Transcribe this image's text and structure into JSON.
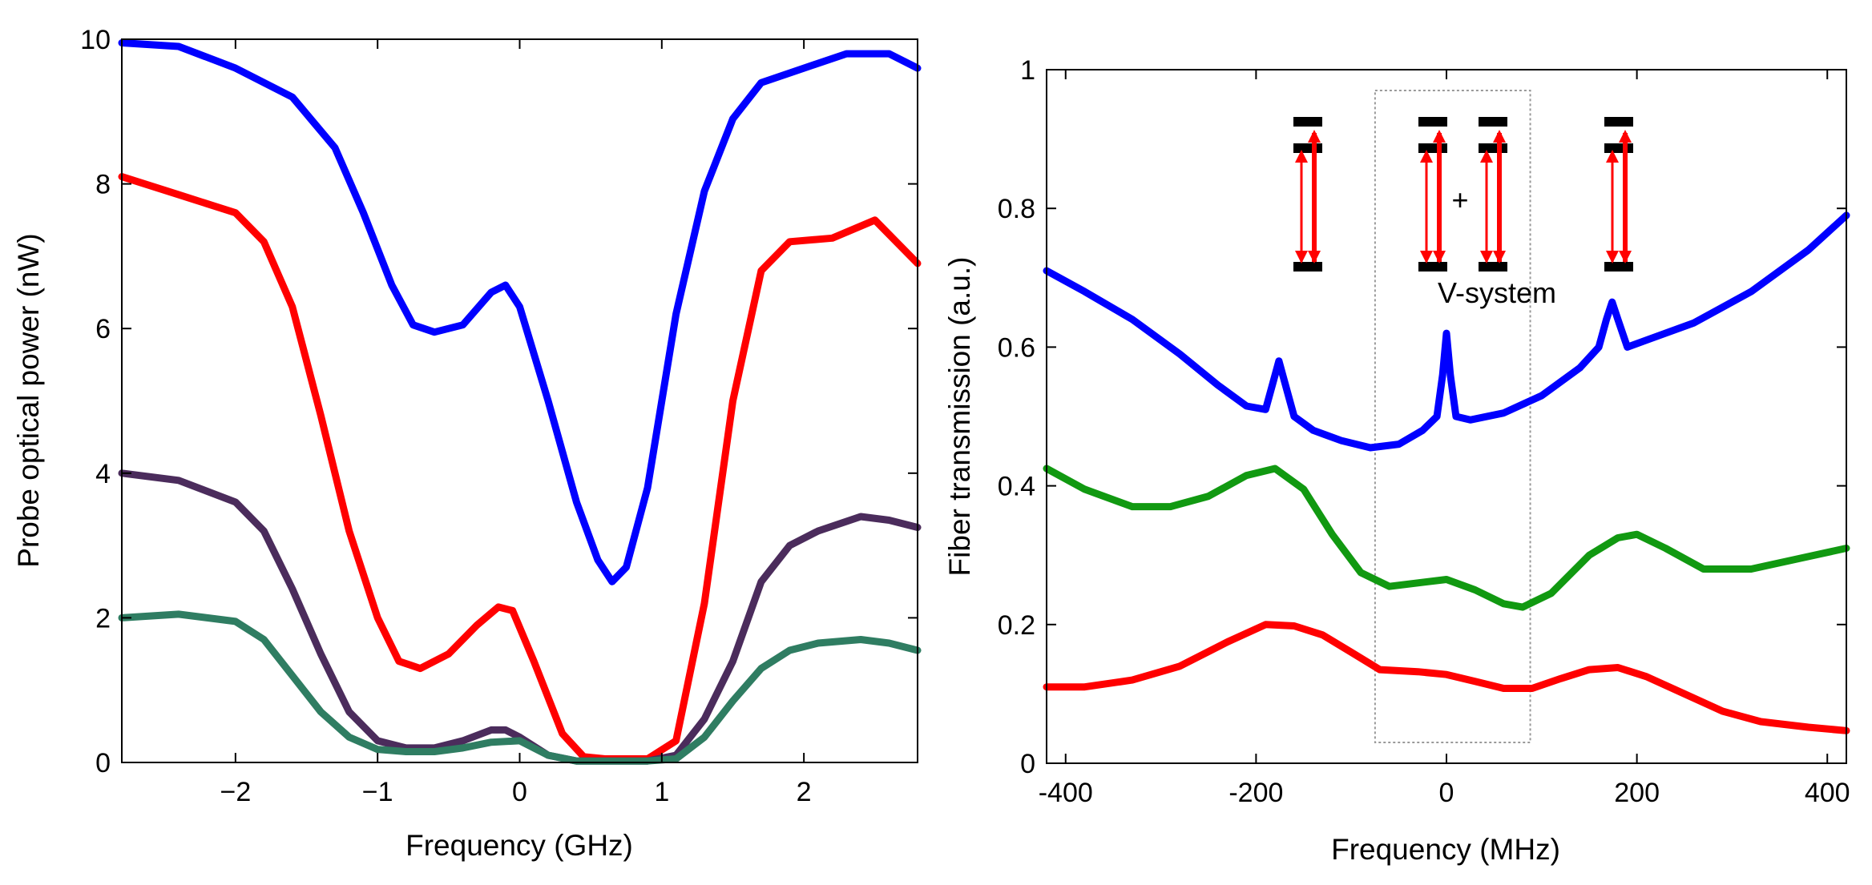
{
  "chart_data": [
    {
      "type": "line",
      "xlabel": "Frequency (GHz)",
      "ylabel": "Probe optical power (nW)",
      "xlim": [
        -2.8,
        2.8
      ],
      "ylim": [
        0,
        10
      ],
      "xticks": [
        -2,
        -1,
        0,
        1,
        2
      ],
      "yticks": [
        0,
        2,
        4,
        6,
        8,
        10
      ],
      "xtick_labels": [
        "−2",
        "−1",
        "0",
        "1",
        "2"
      ],
      "ytick_labels": [
        "0",
        "2",
        "4",
        "6",
        "8",
        "10"
      ],
      "grid": false,
      "series": [
        {
          "color": "#0000ff",
          "x": [
            -2.8,
            -2.4,
            -2.0,
            -1.6,
            -1.3,
            -1.1,
            -0.9,
            -0.75,
            -0.6,
            -0.4,
            -0.2,
            -0.1,
            0.0,
            0.2,
            0.4,
            0.55,
            0.65,
            0.75,
            0.9,
            1.1,
            1.3,
            1.5,
            1.7,
            2.0,
            2.3,
            2.6,
            2.8
          ],
          "y": [
            9.95,
            9.9,
            9.6,
            9.2,
            8.5,
            7.6,
            6.6,
            6.05,
            5.95,
            6.05,
            6.5,
            6.6,
            6.3,
            5.0,
            3.6,
            2.8,
            2.5,
            2.7,
            3.8,
            6.2,
            7.9,
            8.9,
            9.4,
            9.6,
            9.8,
            9.8,
            9.6
          ]
        },
        {
          "color": "#ff0000",
          "x": [
            -2.8,
            -2.4,
            -2.0,
            -1.8,
            -1.6,
            -1.4,
            -1.2,
            -1.0,
            -0.85,
            -0.7,
            -0.5,
            -0.3,
            -0.15,
            -0.05,
            0.1,
            0.3,
            0.45,
            0.6,
            0.9,
            1.1,
            1.3,
            1.5,
            1.7,
            1.9,
            2.2,
            2.5,
            2.8
          ],
          "y": [
            8.1,
            7.85,
            7.6,
            7.2,
            6.3,
            4.8,
            3.2,
            2.0,
            1.4,
            1.3,
            1.5,
            1.9,
            2.15,
            2.1,
            1.4,
            0.4,
            0.08,
            0.05,
            0.05,
            0.3,
            2.2,
            5.0,
            6.8,
            7.2,
            7.25,
            7.5,
            6.9
          ]
        },
        {
          "color": "#4b2c5c",
          "x": [
            -2.8,
            -2.4,
            -2.0,
            -1.8,
            -1.6,
            -1.4,
            -1.2,
            -1.0,
            -0.8,
            -0.6,
            -0.4,
            -0.2,
            -0.1,
            0.0,
            0.2,
            0.4,
            0.6,
            0.9,
            1.1,
            1.3,
            1.5,
            1.7,
            1.9,
            2.1,
            2.4,
            2.6,
            2.8
          ],
          "y": [
            4.0,
            3.9,
            3.6,
            3.2,
            2.4,
            1.5,
            0.7,
            0.3,
            0.2,
            0.2,
            0.3,
            0.45,
            0.45,
            0.35,
            0.1,
            0.02,
            0.02,
            0.02,
            0.1,
            0.6,
            1.4,
            2.5,
            3.0,
            3.2,
            3.4,
            3.35,
            3.25
          ]
        },
        {
          "color": "#2f7d62",
          "x": [
            -2.8,
            -2.4,
            -2.0,
            -1.8,
            -1.6,
            -1.4,
            -1.2,
            -1.0,
            -0.8,
            -0.6,
            -0.4,
            -0.2,
            0.0,
            0.2,
            0.4,
            0.6,
            0.9,
            1.1,
            1.3,
            1.5,
            1.7,
            1.9,
            2.1,
            2.4,
            2.6,
            2.8
          ],
          "y": [
            2.0,
            2.05,
            1.95,
            1.7,
            1.2,
            0.7,
            0.35,
            0.18,
            0.15,
            0.15,
            0.2,
            0.28,
            0.3,
            0.1,
            0.02,
            0.02,
            0.02,
            0.05,
            0.35,
            0.85,
            1.3,
            1.55,
            1.65,
            1.7,
            1.65,
            1.55
          ]
        }
      ]
    },
    {
      "type": "line",
      "xlabel": "Frequency (MHz)",
      "ylabel": "Fiber transmission (a.u.)",
      "xlim": [
        -420,
        420
      ],
      "ylim": [
        0,
        1
      ],
      "xticks": [
        -400,
        -200,
        0,
        200,
        400
      ],
      "yticks": [
        0,
        0.2,
        0.4,
        0.6,
        0.8,
        1
      ],
      "xtick_labels": [
        "-400",
        "-200",
        "0",
        "200",
        "400"
      ],
      "ytick_labels": [
        "0",
        "0.2",
        "0.4",
        "0.6",
        "0.8",
        "1"
      ],
      "grid": false,
      "annotations": {
        "box_x": [
          -75,
          88
        ],
        "box_y": [
          0.03,
          0.97
        ],
        "v_system_label": "V-system",
        "plus_label": "+"
      },
      "series": [
        {
          "color": "#0000ff",
          "x": [
            -420,
            -380,
            -330,
            -280,
            -240,
            -210,
            -190,
            -182,
            -176,
            -170,
            -160,
            -140,
            -110,
            -80,
            -50,
            -25,
            -10,
            -4,
            0,
            4,
            10,
            25,
            60,
            100,
            140,
            160,
            168,
            174,
            180,
            190,
            210,
            260,
            320,
            380,
            420
          ],
          "y": [
            0.71,
            0.68,
            0.64,
            0.59,
            0.545,
            0.515,
            0.51,
            0.55,
            0.58,
            0.55,
            0.5,
            0.48,
            0.465,
            0.455,
            0.46,
            0.48,
            0.5,
            0.56,
            0.62,
            0.56,
            0.5,
            0.495,
            0.505,
            0.53,
            0.57,
            0.6,
            0.64,
            0.665,
            0.64,
            0.6,
            0.61,
            0.635,
            0.68,
            0.74,
            0.79
          ]
        },
        {
          "color": "#119911",
          "x": [
            -420,
            -380,
            -330,
            -290,
            -250,
            -210,
            -180,
            -150,
            -120,
            -90,
            -60,
            -30,
            0,
            30,
            60,
            80,
            110,
            150,
            180,
            200,
            230,
            270,
            320,
            370,
            420
          ],
          "y": [
            0.425,
            0.395,
            0.37,
            0.37,
            0.385,
            0.415,
            0.425,
            0.395,
            0.33,
            0.275,
            0.255,
            0.26,
            0.265,
            0.25,
            0.23,
            0.225,
            0.245,
            0.3,
            0.325,
            0.33,
            0.31,
            0.28,
            0.28,
            0.295,
            0.31
          ]
        },
        {
          "color": "#ff0000",
          "x": [
            -420,
            -380,
            -330,
            -280,
            -230,
            -190,
            -160,
            -130,
            -100,
            -70,
            -30,
            0,
            30,
            60,
            90,
            120,
            150,
            180,
            210,
            250,
            290,
            330,
            380,
            420
          ],
          "y": [
            0.11,
            0.11,
            0.12,
            0.14,
            0.175,
            0.2,
            0.198,
            0.185,
            0.16,
            0.135,
            0.132,
            0.128,
            0.118,
            0.108,
            0.108,
            0.122,
            0.135,
            0.138,
            0.125,
            0.1,
            0.075,
            0.06,
            0.052,
            0.047
          ]
        }
      ]
    }
  ]
}
